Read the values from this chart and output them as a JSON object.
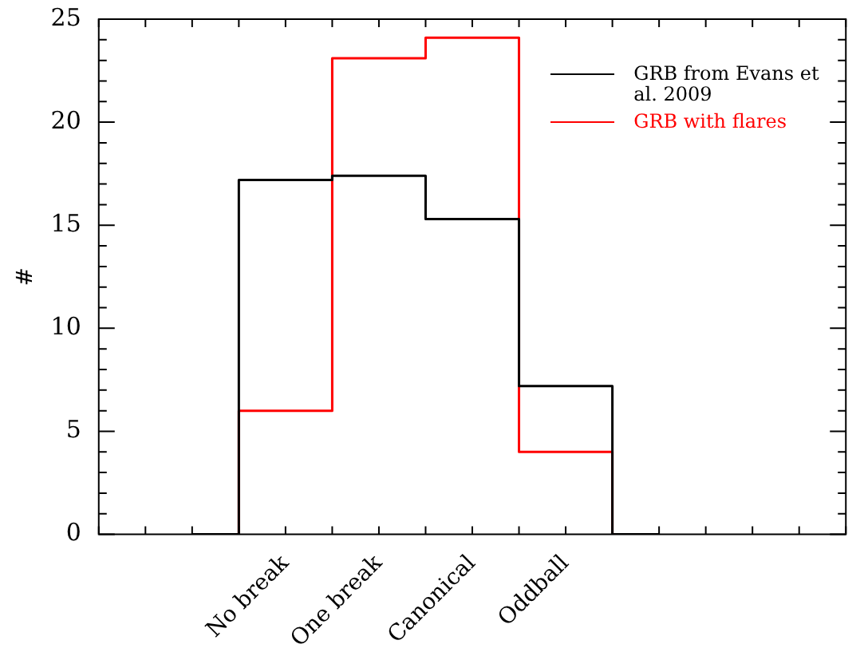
{
  "chart_data": {
    "type": "step",
    "ylabel": "#",
    "categories": [
      null,
      null,
      "No break",
      "One break",
      "Canonical",
      "Oddball",
      null,
      null,
      null
    ],
    "ylim": [
      0,
      25
    ],
    "yticks": [
      0,
      {
        "value": 1,
        "label": null
      },
      {
        "value": 2,
        "label": null
      },
      {
        "value": 3,
        "label": null
      },
      {
        "value": 4,
        "label": null
      },
      5,
      {
        "value": 6,
        "label": null
      },
      {
        "value": 7,
        "label": null
      },
      {
        "value": 8,
        "label": null
      },
      {
        "value": 9,
        "label": null
      },
      10,
      {
        "value": 11,
        "label": null
      },
      {
        "value": 12,
        "label": null
      },
      {
        "value": 13,
        "label": null
      },
      {
        "value": 14,
        "label": null
      },
      15,
      {
        "value": 16,
        "label": null
      },
      {
        "value": 17,
        "label": null
      },
      {
        "value": 18,
        "label": null
      },
      {
        "value": 19,
        "label": null
      },
      20,
      {
        "value": 21,
        "label": null
      },
      {
        "value": 22,
        "label": null
      },
      {
        "value": 23,
        "label": null
      },
      {
        "value": 24,
        "label": null
      },
      25
    ],
    "series": [
      {
        "name": "GRB from Evans et al. 2009",
        "color": "#000000",
        "values": [
          null,
          0,
          17.2,
          17.4,
          15.3,
          7.2,
          0,
          null,
          null
        ]
      },
      {
        "name": "GRB with flares",
        "color": "#ff0000",
        "values": [
          null,
          0,
          6,
          23.1,
          24.1,
          4,
          0,
          null,
          null
        ]
      }
    ],
    "legend": "top right"
  }
}
